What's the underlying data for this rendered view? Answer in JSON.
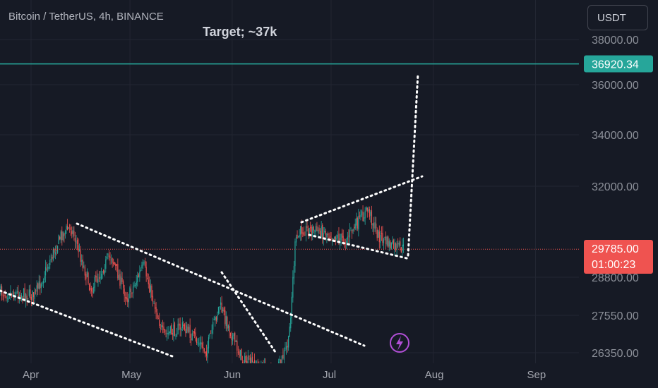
{
  "header": {
    "symbol_title": "Bitcoin / TetherUS, 4h, BINANCE",
    "currency_button": "USDT"
  },
  "annotation": {
    "text": "Target; ~37k"
  },
  "badges": {
    "target_price": "36920.34",
    "current_price": "29785.00",
    "countdown": "01:00:23"
  },
  "colors": {
    "background": "#161a25",
    "grid": "#232632",
    "up": "#26a69a",
    "down": "#ef5350",
    "target_line": "#26a69a",
    "price_line": "#ef5350",
    "trendline": "#ffffff",
    "lightning": "#b14fd6"
  },
  "icons": {
    "lightning": "lightning-icon"
  },
  "chart_data": {
    "type": "candlestick",
    "title": "Bitcoin / TetherUS, 4h, BINANCE",
    "ylim": [
      26200,
      38400
    ],
    "y_ticks": [
      "38000.00",
      "36000.00",
      "34000.00",
      "32000.00",
      "28800.00",
      "27550.00",
      "26350.00"
    ],
    "x_ticks": [
      "Apr",
      "May",
      "Jun",
      "Jul",
      "Aug",
      "Sep"
    ],
    "grid": true,
    "target_line": 36920.34,
    "last_price": 29785.0,
    "series": [
      {
        "date": "2023-03-26",
        "close": 28300
      },
      {
        "date": "2023-04-03",
        "close": 28200
      },
      {
        "date": "2023-04-11",
        "close": 30300
      },
      {
        "date": "2023-04-14",
        "close": 30600
      },
      {
        "date": "2023-04-20",
        "close": 28400
      },
      {
        "date": "2023-04-26",
        "close": 29600
      },
      {
        "date": "2023-05-01",
        "close": 28100
      },
      {
        "date": "2023-05-06",
        "close": 29200
      },
      {
        "date": "2023-05-12",
        "close": 26900
      },
      {
        "date": "2023-05-18",
        "close": 27200
      },
      {
        "date": "2023-05-25",
        "close": 26400
      },
      {
        "date": "2023-05-29",
        "close": 27900
      },
      {
        "date": "2023-06-05",
        "close": 26100
      },
      {
        "date": "2023-06-10",
        "close": 25900
      },
      {
        "date": "2023-06-15",
        "close": 25600
      },
      {
        "date": "2023-06-19",
        "close": 26700
      },
      {
        "date": "2023-06-21",
        "close": 30000
      },
      {
        "date": "2023-06-23",
        "close": 30500
      },
      {
        "date": "2023-06-30",
        "close": 30400
      },
      {
        "date": "2023-07-06",
        "close": 30100
      },
      {
        "date": "2023-07-13",
        "close": 31200
      },
      {
        "date": "2023-07-16",
        "close": 30300
      },
      {
        "date": "2023-07-20",
        "close": 29900
      },
      {
        "date": "2023-07-24",
        "close": 29785
      }
    ]
  }
}
